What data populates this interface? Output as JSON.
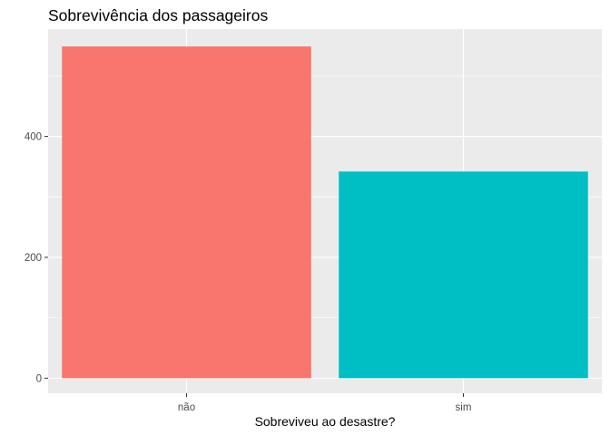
{
  "chart_data": {
    "type": "bar",
    "title": "Sobrevivência dos passageiros",
    "xlabel": "Sobreviveu ao desastre?",
    "ylabel": "",
    "categories": [
      "não",
      "sim"
    ],
    "values": [
      549,
      342
    ],
    "colors": [
      "#F8766D",
      "#00BFC4"
    ],
    "ylim": [
      0,
      577
    ],
    "yticks": [
      0,
      200,
      400
    ],
    "grid": true,
    "panel_background": "#EBEBEB",
    "gridline_color": "#FFFFFF",
    "legend": "none"
  }
}
